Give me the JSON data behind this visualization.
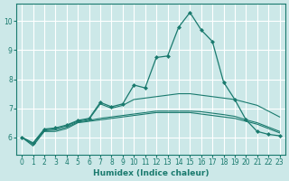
{
  "xlabel": "Humidex (Indice chaleur)",
  "background_color": "#cce8e8",
  "grid_color": "#ffffff",
  "line_color": "#1a7a6e",
  "xlim": [
    -0.5,
    23.5
  ],
  "ylim": [
    5.4,
    10.6
  ],
  "yticks": [
    6,
    7,
    8,
    9,
    10
  ],
  "xticks": [
    0,
    1,
    2,
    3,
    4,
    5,
    6,
    7,
    8,
    9,
    10,
    11,
    12,
    13,
    14,
    15,
    16,
    17,
    18,
    19,
    20,
    21,
    22,
    23
  ],
  "series": [
    {
      "x": [
        0,
        1,
        2,
        3,
        4,
        5,
        6,
        7,
        8,
        9,
        10,
        11,
        12,
        13,
        14,
        15,
        16,
        17,
        18,
        19,
        20,
        21,
        22,
        23
      ],
      "y": [
        6.0,
        5.7,
        6.2,
        6.2,
        6.3,
        6.5,
        6.55,
        6.6,
        6.65,
        6.7,
        6.75,
        6.8,
        6.85,
        6.85,
        6.85,
        6.85,
        6.8,
        6.75,
        6.7,
        6.65,
        6.55,
        6.45,
        6.3,
        6.15
      ],
      "has_markers": false
    },
    {
      "x": [
        0,
        1,
        2,
        3,
        4,
        5,
        6,
        7,
        8,
        9,
        10,
        11,
        12,
        13,
        14,
        15,
        16,
        17,
        18,
        19,
        20,
        21,
        22,
        23
      ],
      "y": [
        6.0,
        5.75,
        6.22,
        6.25,
        6.35,
        6.52,
        6.58,
        6.65,
        6.7,
        6.75,
        6.8,
        6.85,
        6.9,
        6.9,
        6.9,
        6.9,
        6.88,
        6.83,
        6.78,
        6.72,
        6.6,
        6.5,
        6.35,
        6.2
      ],
      "has_markers": false
    },
    {
      "x": [
        0,
        1,
        2,
        3,
        4,
        5,
        6,
        7,
        8,
        9,
        10,
        11,
        12,
        13,
        14,
        15,
        16,
        17,
        18,
        19,
        20,
        21,
        22,
        23
      ],
      "y": [
        6.0,
        5.8,
        6.25,
        6.3,
        6.4,
        6.55,
        6.62,
        7.15,
        7.0,
        7.1,
        7.3,
        7.35,
        7.4,
        7.45,
        7.5,
        7.5,
        7.45,
        7.4,
        7.35,
        7.3,
        7.2,
        7.1,
        6.9,
        6.7
      ],
      "has_markers": false
    },
    {
      "x": [
        0,
        1,
        2,
        3,
        4,
        5,
        6,
        7,
        8,
        9,
        10,
        11,
        12,
        13,
        14,
        15,
        16,
        17,
        18,
        19,
        20,
        21,
        22,
        23
      ],
      "y": [
        6.0,
        5.8,
        6.28,
        6.32,
        6.42,
        6.58,
        6.65,
        7.2,
        7.05,
        7.15,
        7.8,
        7.7,
        8.75,
        8.8,
        9.8,
        10.3,
        9.7,
        9.3,
        7.9,
        7.3,
        6.6,
        6.2,
        6.1,
        6.05
      ],
      "has_markers": true
    }
  ]
}
